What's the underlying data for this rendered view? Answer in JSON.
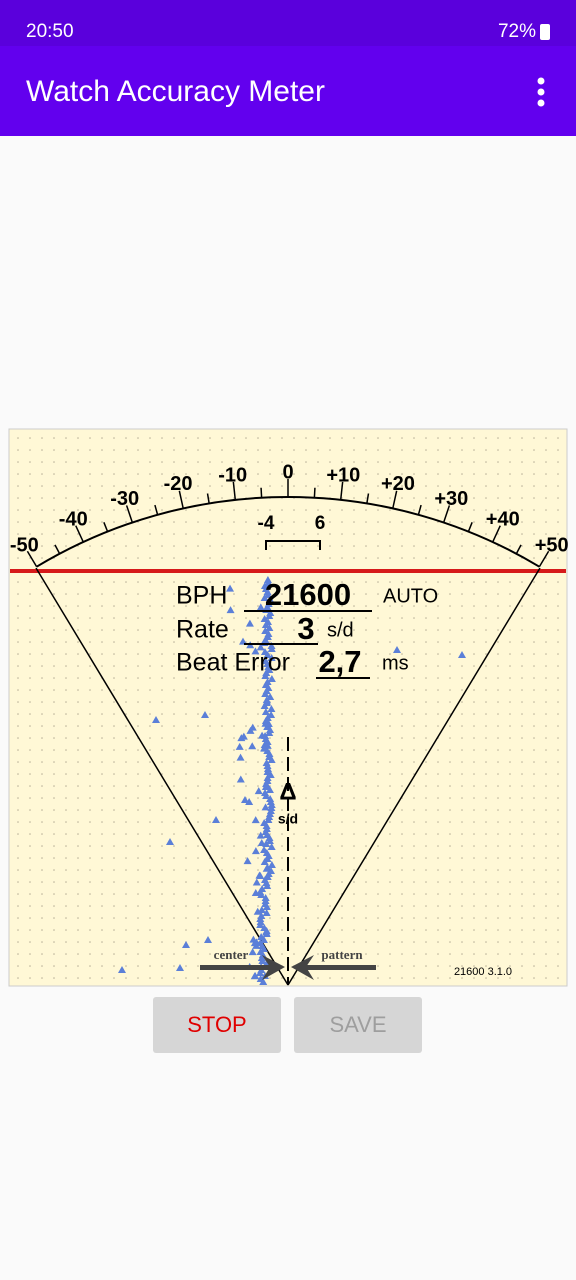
{
  "status_bar": {
    "time": "20:50",
    "battery": "72%"
  },
  "app_bar": {
    "title": "Watch Accuracy Meter"
  },
  "dial": {
    "labels": [
      "-50",
      "-40",
      "-30",
      "-20",
      "-10",
      "0",
      "+10",
      "+20",
      "+30",
      "+40",
      "+50"
    ],
    "range_low": "-4",
    "range_high": "6"
  },
  "readout": {
    "bph_label": "BPH",
    "bph_value": "21600",
    "bph_mode": "AUTO",
    "rate_label": "Rate",
    "rate_value": "3",
    "rate_unit": "s/d",
    "beat_error_label": "Beat Error",
    "beat_error_value": "2,7",
    "beat_error_unit": "ms"
  },
  "graph": {
    "delta": "Δ",
    "delta_unit": "s/d",
    "center": "center",
    "pattern": "pattern",
    "version": "21600 3.1.0"
  },
  "buttons": {
    "stop": "STOP",
    "save": "SAVE"
  }
}
